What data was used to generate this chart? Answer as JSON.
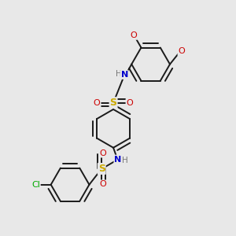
{
  "bg_color": "#e8e8e8",
  "bond_color": "#1a1a1a",
  "bond_width": 1.4,
  "figsize": [
    3.0,
    3.0
  ],
  "dpi": 100,
  "ring_r": 0.085,
  "colors": {
    "S": "#ccaa00",
    "O": "#cc0000",
    "N": "#0000cc",
    "H": "#777777",
    "Cl": "#00aa00",
    "C": "#1a1a1a"
  }
}
